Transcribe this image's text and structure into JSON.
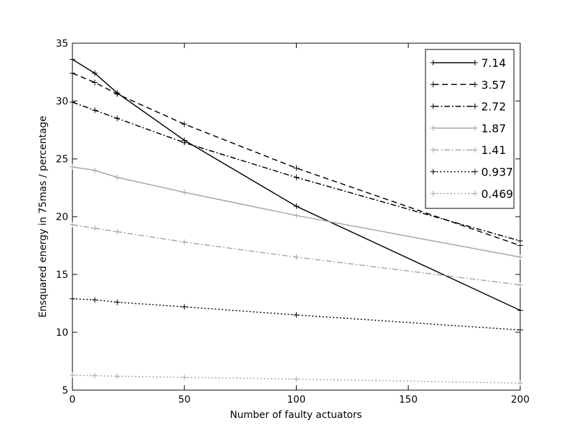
{
  "chart_data": {
    "type": "line",
    "title": "",
    "xlabel": "Number of faulty actuators",
    "ylabel": "Ensquared energy in 75mas / percentage",
    "xlim": [
      0,
      200
    ],
    "ylim": [
      5,
      35
    ],
    "xticks": [
      0,
      50,
      100,
      150,
      200
    ],
    "yticks": [
      5,
      10,
      15,
      20,
      25,
      30,
      35
    ],
    "grid": false,
    "legend_position": "top-right",
    "x": [
      0,
      10,
      20,
      50,
      100,
      200
    ],
    "series": [
      {
        "name": "7.14",
        "values": [
          33.6,
          32.4,
          30.7,
          26.6,
          20.9,
          11.9
        ],
        "color": "#000000",
        "dash": "solid"
      },
      {
        "name": "3.57",
        "values": [
          32.4,
          31.6,
          30.6,
          28.0,
          24.2,
          17.5
        ],
        "color": "#000000",
        "dash": "dashed"
      },
      {
        "name": "2.72",
        "values": [
          29.9,
          29.2,
          28.5,
          26.4,
          23.4,
          17.9
        ],
        "color": "#000000",
        "dash": "dashdot"
      },
      {
        "name": "1.87",
        "values": [
          24.3,
          24.0,
          23.4,
          22.1,
          20.1,
          16.5
        ],
        "color": "#a6a6a6",
        "dash": "solid"
      },
      {
        "name": "1.41",
        "values": [
          19.3,
          19.0,
          18.7,
          17.8,
          16.5,
          14.1
        ],
        "color": "#a6a6a6",
        "dash": "dashdot"
      },
      {
        "name": "0.937",
        "values": [
          12.9,
          12.8,
          12.6,
          12.2,
          11.5,
          10.2
        ],
        "color": "#000000",
        "dash": "dotted"
      },
      {
        "name": "0.469",
        "values": [
          6.3,
          6.25,
          6.2,
          6.1,
          5.95,
          5.6
        ],
        "color": "#a6a6a6",
        "dash": "dotted"
      }
    ]
  }
}
